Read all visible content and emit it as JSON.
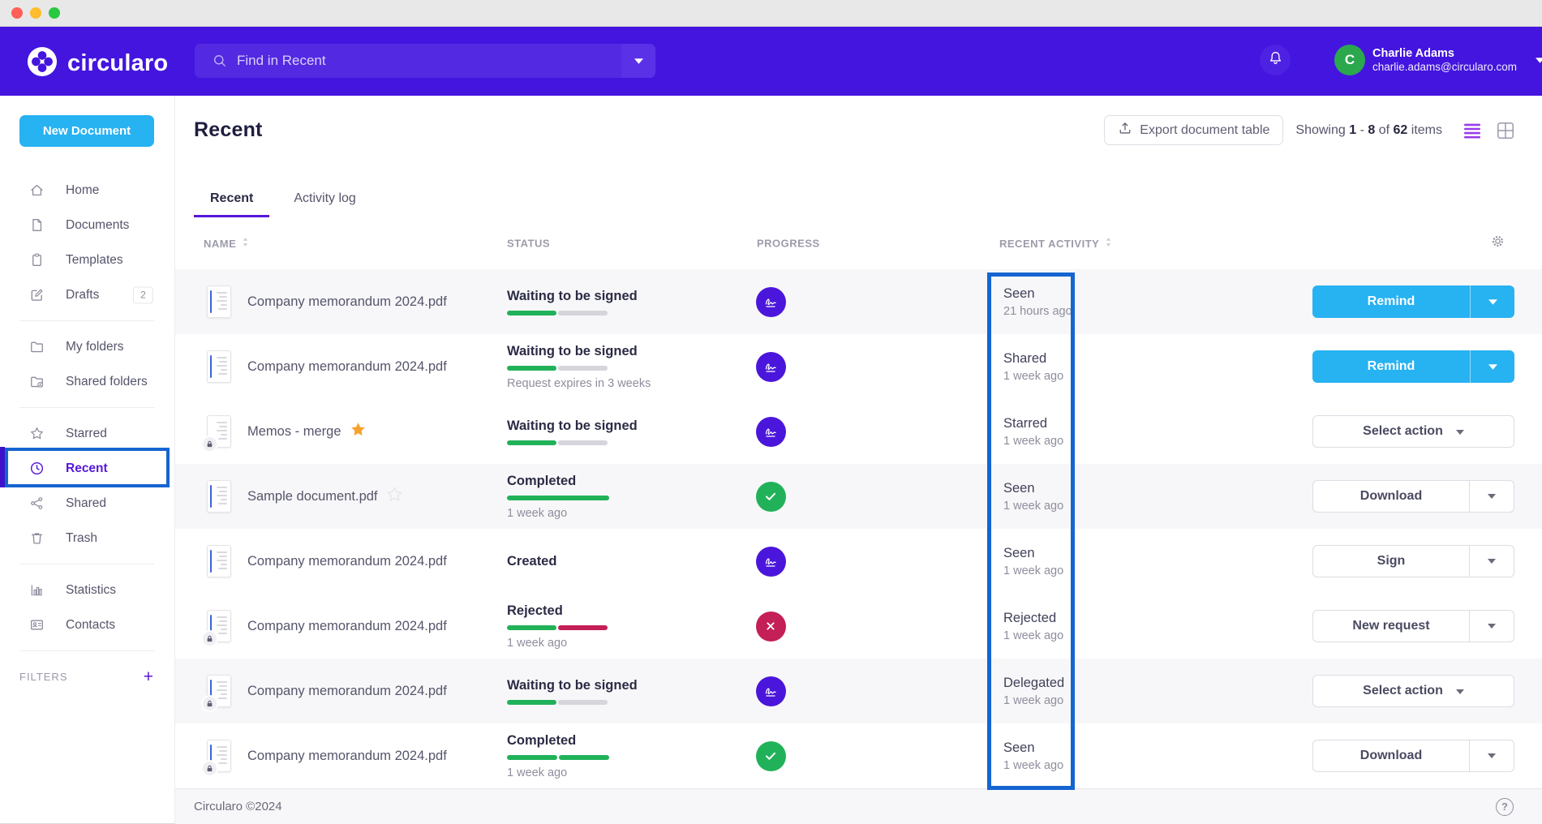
{
  "colors": {
    "header_purple": "#4315DE",
    "accent_purple": "#5617D9",
    "primary_blue": "#27B2F2",
    "success_green": "#21B259",
    "danger_crimson": "#C41F56",
    "annotation_blue": "#1565D1",
    "avatar_green": "#2BA84E"
  },
  "header": {
    "logo_text": "circularo",
    "search_placeholder": "Find in Recent",
    "user_initial": "C",
    "user_name": "Charlie Adams",
    "user_email": "charlie.adams@circularo.com"
  },
  "sidebar": {
    "new_document": "New Document",
    "groups": [
      [
        {
          "icon": "home",
          "label": "Home"
        },
        {
          "icon": "document",
          "label": "Documents"
        },
        {
          "icon": "template",
          "label": "Templates"
        },
        {
          "icon": "draft",
          "label": "Drafts",
          "badge": "2"
        }
      ],
      [
        {
          "icon": "folder",
          "label": "My folders"
        },
        {
          "icon": "folder-shared",
          "label": "Shared folders"
        }
      ],
      [
        {
          "icon": "star",
          "label": "Starred"
        },
        {
          "icon": "clock",
          "label": "Recent",
          "active": true
        },
        {
          "icon": "share",
          "label": "Shared"
        },
        {
          "icon": "trash",
          "label": "Trash"
        }
      ],
      [
        {
          "icon": "stats",
          "label": "Statistics"
        },
        {
          "icon": "contacts",
          "label": "Contacts"
        }
      ]
    ],
    "filters_label": "FILTERS"
  },
  "page": {
    "title": "Recent",
    "export_button": "Export document table",
    "showing": {
      "prefix": "Showing",
      "from": "1",
      "dash": "-",
      "to": "8",
      "of": "of",
      "total": "62",
      "suffix": "items"
    },
    "tabs": [
      {
        "label": "Recent",
        "active": true
      },
      {
        "label": "Activity log",
        "active": false
      }
    ]
  },
  "table": {
    "columns": [
      {
        "label": "NAME",
        "sortable": true
      },
      {
        "label": "STATUS",
        "sortable": false
      },
      {
        "label": "PROGRESS",
        "sortable": false
      },
      {
        "label": "RECENT ACTIVITY",
        "sortable": true
      }
    ],
    "rows": [
      {
        "name": "Company memorandum 2024.pdf",
        "locked": false,
        "star": null,
        "doc_accent": true,
        "status": "Waiting to be signed",
        "status_sub": null,
        "progress": "half",
        "badge": "signature",
        "activity": "Seen",
        "activity_time": "21 hours ago",
        "action": {
          "label": "Remind",
          "variant": "primary",
          "split": true
        },
        "shaded": true
      },
      {
        "name": "Company memorandum 2024.pdf",
        "locked": false,
        "star": null,
        "doc_accent": true,
        "status": "Waiting to be signed",
        "status_sub": "Request expires in 3 weeks",
        "progress": "half",
        "badge": "signature",
        "activity": "Shared",
        "activity_time": "1 week ago",
        "action": {
          "label": "Remind",
          "variant": "primary",
          "split": true
        },
        "shaded": false
      },
      {
        "name": "Memos - merge",
        "locked": true,
        "star": "filled",
        "doc_accent": false,
        "status": "Waiting to be signed",
        "status_sub": null,
        "progress": "half",
        "badge": "signature",
        "activity": "Starred",
        "activity_time": "1 week ago",
        "action": {
          "label": "Select action",
          "variant": "outline",
          "split": false
        },
        "shaded": false
      },
      {
        "name": "Sample document.pdf",
        "locked": false,
        "star": "outline",
        "doc_accent": true,
        "status": "Completed",
        "status_sub": "1 week ago",
        "progress": "full",
        "badge": "check",
        "activity": "Seen",
        "activity_time": "1 week ago",
        "action": {
          "label": "Download",
          "variant": "outline",
          "split": true
        },
        "shaded": true
      },
      {
        "name": "Company memorandum 2024.pdf",
        "locked": false,
        "star": null,
        "doc_accent": true,
        "status": "Created",
        "status_sub": null,
        "progress": "none",
        "badge": "signature",
        "activity": "Seen",
        "activity_time": "1 week ago",
        "action": {
          "label": "Sign",
          "variant": "outline",
          "split": true
        },
        "shaded": false
      },
      {
        "name": "Company memorandum 2024.pdf",
        "locked": true,
        "star": null,
        "doc_accent": true,
        "status": "Rejected",
        "status_sub": "1 week ago",
        "progress": "rejected",
        "badge": "reject",
        "activity": "Rejected",
        "activity_time": "1 week ago",
        "action": {
          "label": "New request",
          "variant": "outline",
          "split": true
        },
        "shaded": false
      },
      {
        "name": "Company memorandum 2024.pdf",
        "locked": true,
        "star": null,
        "doc_accent": true,
        "status": "Waiting to be signed",
        "status_sub": null,
        "progress": "half",
        "badge": "signature",
        "activity": "Delegated",
        "activity_time": "1 week ago",
        "action": {
          "label": "Select action",
          "variant": "outline",
          "split": false
        },
        "shaded": true
      },
      {
        "name": "Company memorandum 2024.pdf",
        "locked": true,
        "star": null,
        "doc_accent": true,
        "status": "Completed",
        "status_sub": "1 week ago",
        "progress": "full_split",
        "badge": "check",
        "activity": "Seen",
        "activity_time": "1 week ago",
        "action": {
          "label": "Download",
          "variant": "outline",
          "split": true
        },
        "shaded": false
      }
    ]
  },
  "footer": {
    "copyright": "Circularo ©2024"
  }
}
